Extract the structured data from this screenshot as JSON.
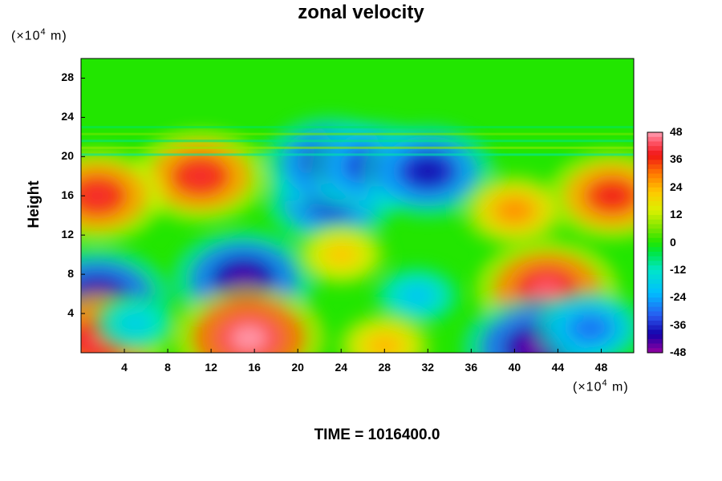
{
  "chart_data": {
    "type": "heatmap",
    "title": "zonal velocity",
    "ylabel": "Height",
    "x_unit": {
      "prefix": "(×10",
      "exp": "4",
      "suffix": " m)"
    },
    "y_unit": {
      "prefix": "(×10",
      "exp": "4",
      "suffix": " m)"
    },
    "xlim": [
      0,
      51
    ],
    "ylim": [
      0,
      30
    ],
    "x_ticks": [
      "4",
      "8",
      "12",
      "16",
      "20",
      "24",
      "28",
      "32",
      "36",
      "40",
      "44",
      "48"
    ],
    "y_ticks": [
      "4",
      "8",
      "12",
      "16",
      "20",
      "24",
      "28"
    ],
    "colorbar": {
      "min": -48,
      "max": 48,
      "ticks": [
        "48",
        "36",
        "24",
        "12",
        "0",
        "-12",
        "-24",
        "-36",
        "-48"
      ]
    },
    "features": [
      {
        "x": 15,
        "y": 7.5,
        "value": -44
      },
      {
        "x": 43,
        "y": 6.5,
        "value": 44
      },
      {
        "x": 15.5,
        "y": 1.5,
        "value": 48
      },
      {
        "x": 42,
        "y": 0.5,
        "value": -46
      },
      {
        "x": 1.5,
        "y": 5.5,
        "value": -46
      },
      {
        "x": 1.5,
        "y": 1.2,
        "value": 42
      },
      {
        "x": 11,
        "y": 18,
        "value": 40
      },
      {
        "x": 1.5,
        "y": 16,
        "value": 40
      },
      {
        "x": 49,
        "y": 16,
        "value": 38
      },
      {
        "x": 23,
        "y": 15.5,
        "value": -38
      },
      {
        "x": 23,
        "y": 19.4,
        "value": -40
      },
      {
        "x": 27,
        "y": 19,
        "value": -38
      },
      {
        "x": 32,
        "y": 18.5,
        "value": -40
      },
      {
        "x": 24,
        "y": 10,
        "value": 22
      },
      {
        "x": 31,
        "y": 5.8,
        "value": -20
      },
      {
        "x": 28,
        "y": 0.7,
        "value": 24
      },
      {
        "x": 47,
        "y": 2.5,
        "value": -30
      },
      {
        "x": 5,
        "y": 3,
        "value": -18
      },
      {
        "x": 40,
        "y": 14.5,
        "value": 28
      }
    ],
    "background_value_above_20": 0
  },
  "footer": {
    "time_label": "TIME = 1016400.0"
  }
}
